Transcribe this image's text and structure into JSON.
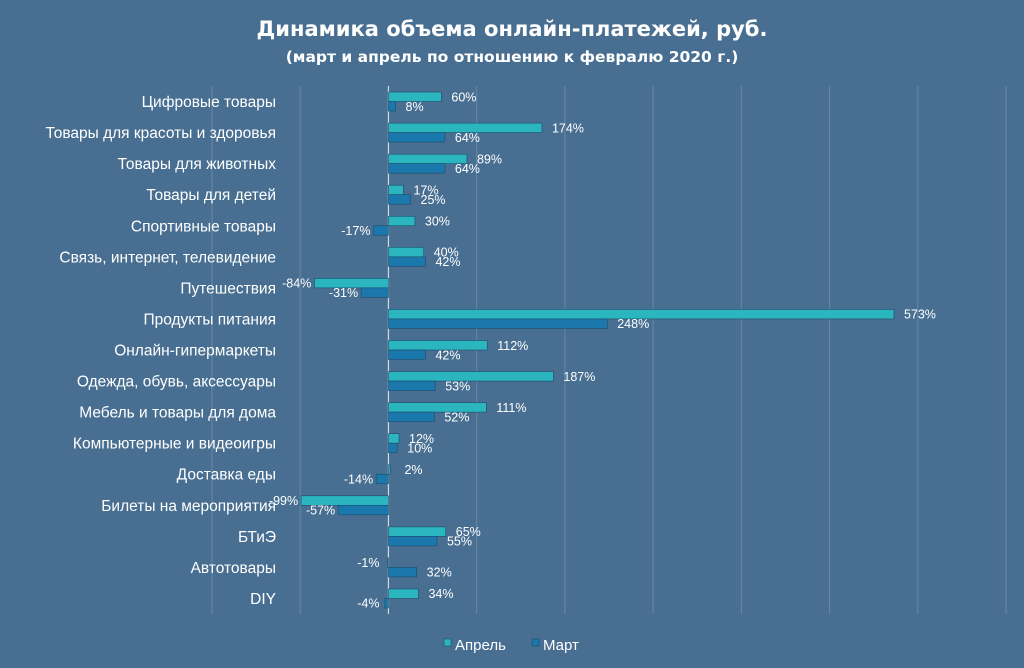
{
  "chart_data": {
    "type": "bar",
    "orientation": "horizontal",
    "title": "Динамика объема онлайн-платежей, руб.",
    "subtitle": "(март и апрель по отношению к февралю 2020 г.)",
    "categories": [
      "Цифровые товары",
      "Товары для красоты и здоровья",
      "Товары для животных",
      "Товары для детей",
      "Спортивные товары",
      "Связь, интернет, телевидение",
      "Путешествия",
      "Продукты питания",
      "Онлайн-гипермаркеты",
      "Одежда, обувь, аксессуары",
      "Мебель и товары для дома",
      "Компьютерные и видеоигры",
      "Доставка еды",
      "Билеты на мероприятия",
      "БТиЭ",
      "Автотовары",
      "DIY"
    ],
    "series": [
      {
        "name": "Апрель",
        "color": "#2bb5be",
        "values": [
          60,
          174,
          89,
          17,
          30,
          40,
          -84,
          573,
          112,
          187,
          111,
          12,
          2,
          -99,
          65,
          -1,
          34
        ],
        "labels": [
          "60%",
          "174%",
          "89%",
          "17%",
          "30%",
          "40%",
          "-84%",
          "573%",
          "112%",
          "187%",
          "111%",
          "12%",
          "2%",
          "-99%",
          "65%",
          "-1%",
          "34%"
        ]
      },
      {
        "name": "Март",
        "color": "#1a78ad",
        "values": [
          8,
          64,
          64,
          25,
          -17,
          42,
          -31,
          248,
          42,
          53,
          52,
          10,
          -14,
          -57,
          55,
          32,
          -4
        ],
        "labels": [
          "8%",
          "64%",
          "64%",
          "25%",
          "-17%",
          "42%",
          "-31%",
          "248%",
          "42%",
          "53%",
          "52%",
          "10%",
          "-14%",
          "-57%",
          "55%",
          "32%",
          "-4%"
        ]
      }
    ],
    "xlim": [
      -200,
      700
    ],
    "grid": true,
    "legend": "bottom-center",
    "xlabel": "",
    "ylabel": ""
  }
}
